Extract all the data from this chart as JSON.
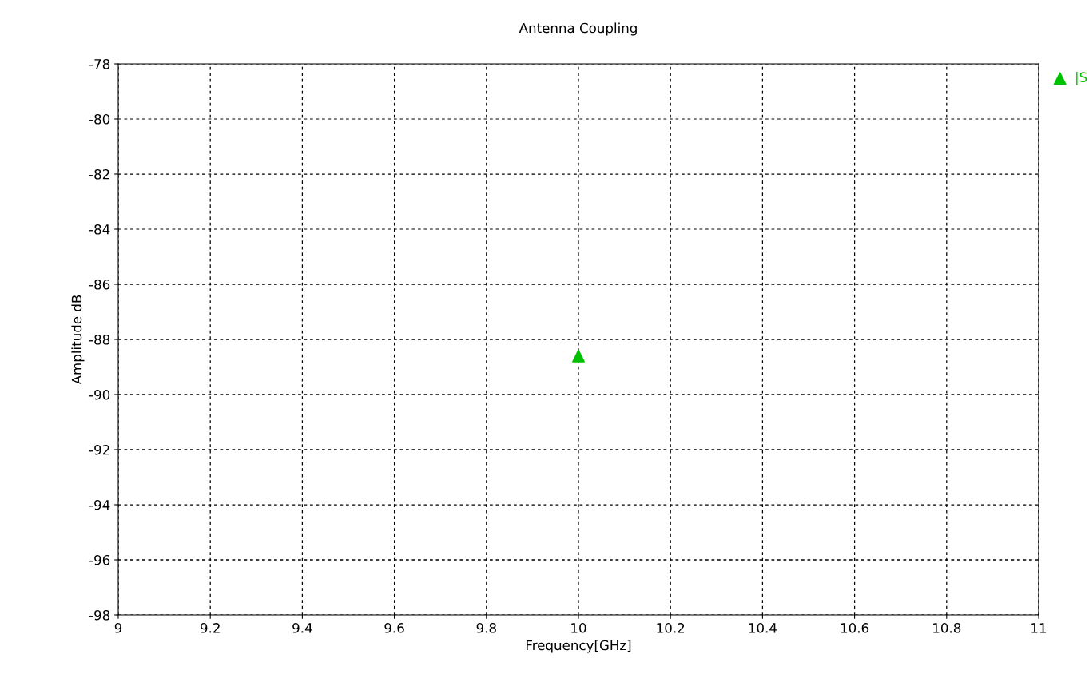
{
  "chart_data": {
    "type": "scatter",
    "title": "Antenna Coupling",
    "xlabel": "Frequency[GHz]",
    "ylabel": "Amplitude dB",
    "x": [
      10
    ],
    "series": [
      {
        "name": "|S",
        "color": "#00c000",
        "values": [
          -88.6
        ]
      }
    ],
    "xlim": [
      9,
      11
    ],
    "xticks": [
      9,
      9.2,
      9.4,
      9.6,
      9.8,
      10,
      10.2,
      10.4,
      10.6,
      10.8,
      11
    ],
    "ylim": [
      -98,
      -78
    ],
    "yticks": [
      -98,
      -96,
      -94,
      -92,
      -90,
      -88,
      -86,
      -84,
      -82,
      -80,
      -78
    ],
    "grid": true,
    "legend": "top right",
    "marker": "triangle"
  }
}
